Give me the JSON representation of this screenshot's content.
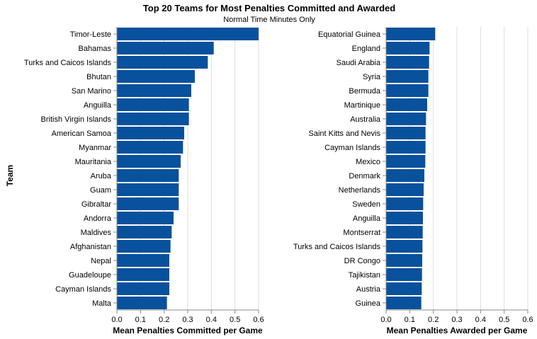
{
  "chart_data": {
    "title": "Top 20 Teams for Most Penalties Committed and Awarded",
    "subtitle": "Normal Time Minutes Only",
    "shared_ylabel": "Team",
    "bar_color": "#08519c",
    "panels": [
      {
        "type": "bar",
        "orientation": "horizontal",
        "xlabel": "Mean Penalties Committed per Game",
        "xlim": [
          0,
          0.6
        ],
        "xticks": [
          "0.0",
          "0.1",
          "0.2",
          "0.3",
          "0.4",
          "0.5",
          "0.6"
        ],
        "grid": true,
        "categories": [
          "Timor-Leste",
          "Bahamas",
          "Turks and Caicos Islands",
          "Bhutan",
          "San Marino",
          "Anguilla",
          "British Virgin Islands",
          "American Samoa",
          "Myanmar",
          "Mauritania",
          "Aruba",
          "Guam",
          "Gibraltar",
          "Andorra",
          "Maldives",
          "Afghanistan",
          "Nepal",
          "Guadeloupe",
          "Cayman Islands",
          "Malta"
        ],
        "values": [
          0.6,
          0.41,
          0.385,
          0.33,
          0.315,
          0.305,
          0.305,
          0.285,
          0.28,
          0.27,
          0.262,
          0.262,
          0.262,
          0.24,
          0.232,
          0.227,
          0.222,
          0.222,
          0.222,
          0.212
        ]
      },
      {
        "type": "bar",
        "orientation": "horizontal",
        "xlabel": "Mean Penalties Awarded per Game",
        "xlim": [
          0,
          0.6
        ],
        "xticks": [
          "0.0",
          "0.1",
          "0.2",
          "0.3",
          "0.4",
          "0.5",
          "0.6"
        ],
        "grid": true,
        "categories": [
          "Equatorial Guinea",
          "England",
          "Saudi Arabia",
          "Syria",
          "Bermuda",
          "Martinique",
          "Australia",
          "Saint Kitts and Nevis",
          "Cayman Islands",
          "Mexico",
          "Denmark",
          "Netherlands",
          "Sweden",
          "Anguilla",
          "Montserrat",
          "Turks and Caicos Islands",
          "DR Congo",
          "Tajikistan",
          "Austria",
          "Guinea"
        ],
        "values": [
          0.208,
          0.184,
          0.182,
          0.179,
          0.179,
          0.174,
          0.169,
          0.167,
          0.167,
          0.166,
          0.162,
          0.159,
          0.157,
          0.156,
          0.155,
          0.154,
          0.153,
          0.152,
          0.151,
          0.149
        ]
      }
    ]
  }
}
